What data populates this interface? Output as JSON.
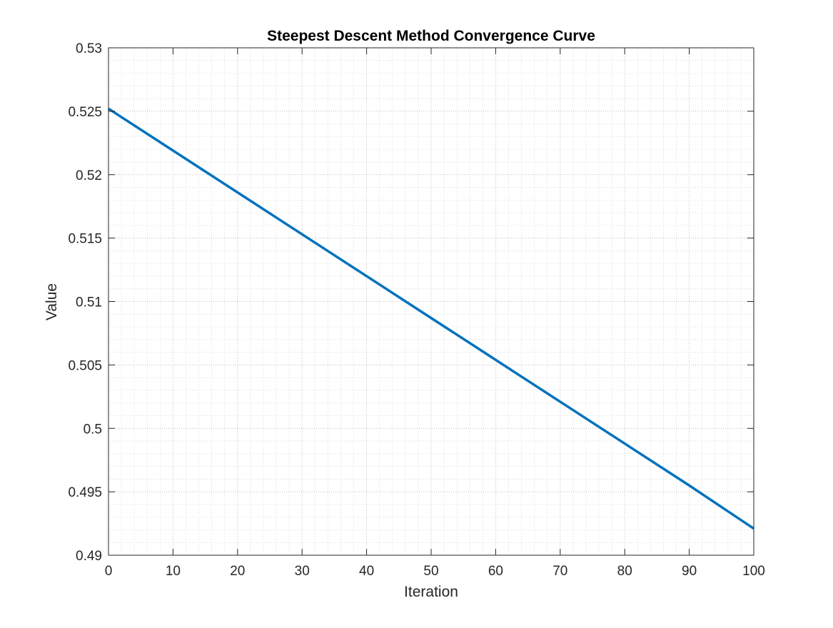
{
  "chart_data": {
    "type": "line",
    "title": "Steepest Descent Method Convergence Curve",
    "xlabel": "Iteration",
    "ylabel": "Value",
    "xlim": [
      0,
      100
    ],
    "ylim": [
      0.49,
      0.53
    ],
    "xticks": [
      0,
      10,
      20,
      30,
      40,
      50,
      60,
      70,
      80,
      90,
      100
    ],
    "xtick_labels": [
      "0",
      "10",
      "20",
      "30",
      "40",
      "50",
      "60",
      "70",
      "80",
      "90",
      "100"
    ],
    "yticks": [
      0.49,
      0.495,
      0.5,
      0.505,
      0.51,
      0.515,
      0.52,
      0.525,
      0.53
    ],
    "ytick_labels": [
      "0.49",
      "0.495",
      "0.5",
      "0.505",
      "0.51",
      "0.515",
      "0.52",
      "0.525",
      "0.53"
    ],
    "grid": true,
    "minor_grid": true,
    "series": [
      {
        "color": "#0072BD",
        "x": [
          0,
          10,
          20,
          30,
          40,
          50,
          60,
          70,
          80,
          90,
          100
        ],
        "y": [
          0.5252,
          0.5219,
          0.5186,
          0.5153,
          0.512,
          0.5087,
          0.5054,
          0.5021,
          0.4988,
          0.4955,
          0.4921
        ]
      }
    ]
  }
}
